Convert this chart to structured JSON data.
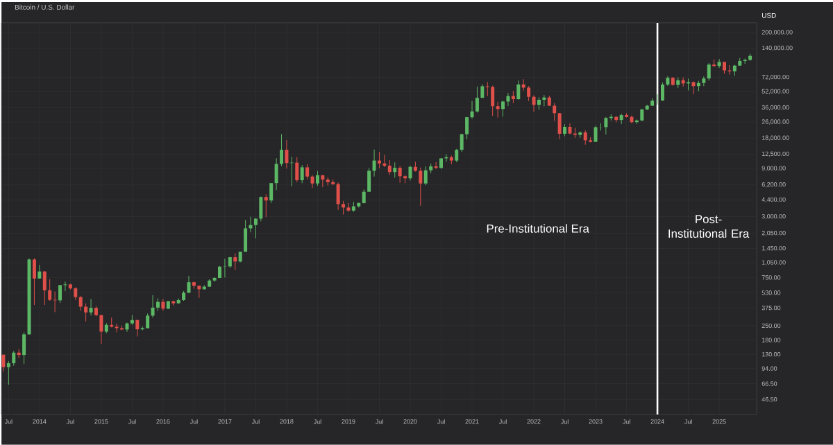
{
  "chart_data": {
    "type": "candlestick",
    "title": "Bitcoin / U.S. Dollar",
    "ylabel": "USD",
    "log": "y",
    "grid": true,
    "xlim": [
      "2013-05-20",
      "2025-08-10"
    ],
    "ylim": [
      33,
      250000
    ],
    "xticks": [
      {
        "value": "2013-07",
        "label": "Jul"
      },
      "2014",
      {
        "value": "2014-07",
        "label": "Jul"
      },
      "2015",
      {
        "value": "2015-07",
        "label": "Jul"
      },
      "2016",
      {
        "value": "2016-07",
        "label": "Jul"
      },
      "2017",
      {
        "value": "2017-07",
        "label": "Jul"
      },
      "2018",
      {
        "value": "2018-07",
        "label": "Jul"
      },
      "2019",
      {
        "value": "2019-07",
        "label": "Jul"
      },
      "2020",
      {
        "value": "2020-07",
        "label": "Jul"
      },
      "2021",
      {
        "value": "2021-07",
        "label": "Jul"
      },
      "2022",
      {
        "value": "2022-07",
        "label": "Jul"
      },
      "2023",
      {
        "value": "2023-07",
        "label": "Jul"
      },
      "2024",
      {
        "value": "2024-07",
        "label": "Jul"
      },
      "2025"
    ],
    "yticks": [
      {
        "value": 46.5,
        "label": "46.50"
      },
      {
        "value": 66.5,
        "label": "66.50"
      },
      {
        "value": 94,
        "label": "94.00"
      },
      {
        "value": 130,
        "label": "130.00"
      },
      {
        "value": 180,
        "label": "180.00"
      },
      {
        "value": 250,
        "label": "250.00"
      },
      {
        "value": 375,
        "label": "375.00"
      },
      {
        "value": 530,
        "label": "530.00"
      },
      {
        "value": 750,
        "label": "750.00"
      },
      {
        "value": 1050,
        "label": "1,050.00"
      },
      {
        "value": 1450,
        "label": "1,450.00"
      },
      {
        "value": 2050,
        "label": "2,050.00"
      },
      {
        "value": 3000,
        "label": "3,000.00"
      },
      {
        "value": 4400,
        "label": "4,400.00"
      },
      {
        "value": 6200,
        "label": "6,200.00"
      },
      {
        "value": 9000,
        "label": "9,000.00"
      },
      {
        "value": 12500,
        "label": "12,500.00"
      },
      {
        "value": 18000,
        "label": "18,000.00"
      },
      {
        "value": 26000,
        "label": "26,000.00"
      },
      {
        "value": 36000,
        "label": "36,000.00"
      },
      {
        "value": 52000,
        "label": "52,000.00"
      },
      {
        "value": 72000,
        "label": "72,000.00"
      },
      {
        "value": 140000,
        "label": "140,000.00"
      },
      {
        "value": 200000,
        "label": "200,000.00"
      }
    ],
    "ref_lines": [
      {
        "axis": "x",
        "value": "2024-01",
        "color": "#ffffff"
      }
    ],
    "annotations": [
      "Pre-Institutional Era",
      "Post-Institutional Era"
    ],
    "x": [
      "2013-06",
      "2013-07",
      "2013-08",
      "2013-09",
      "2013-10",
      "2013-11",
      "2013-12",
      "2014-01",
      "2014-02",
      "2014-03",
      "2014-04",
      "2014-05",
      "2014-06",
      "2014-07",
      "2014-08",
      "2014-09",
      "2014-10",
      "2014-11",
      "2014-12",
      "2015-01",
      "2015-02",
      "2015-03",
      "2015-04",
      "2015-05",
      "2015-06",
      "2015-07",
      "2015-08",
      "2015-09",
      "2015-10",
      "2015-11",
      "2015-12",
      "2016-01",
      "2016-02",
      "2016-03",
      "2016-04",
      "2016-05",
      "2016-06",
      "2016-07",
      "2016-08",
      "2016-09",
      "2016-10",
      "2016-11",
      "2016-12",
      "2017-01",
      "2017-02",
      "2017-03",
      "2017-04",
      "2017-05",
      "2017-06",
      "2017-07",
      "2017-08",
      "2017-09",
      "2017-10",
      "2017-11",
      "2017-12",
      "2018-01",
      "2018-02",
      "2018-03",
      "2018-04",
      "2018-05",
      "2018-06",
      "2018-07",
      "2018-08",
      "2018-09",
      "2018-10",
      "2018-11",
      "2018-12",
      "2019-01",
      "2019-02",
      "2019-03",
      "2019-04",
      "2019-05",
      "2019-06",
      "2019-07",
      "2019-08",
      "2019-09",
      "2019-10",
      "2019-11",
      "2019-12",
      "2020-01",
      "2020-02",
      "2020-03",
      "2020-04",
      "2020-05",
      "2020-06",
      "2020-07",
      "2020-08",
      "2020-09",
      "2020-10",
      "2020-11",
      "2020-12",
      "2021-01",
      "2021-02",
      "2021-03",
      "2021-04",
      "2021-05",
      "2021-06",
      "2021-07",
      "2021-08",
      "2021-09",
      "2021-10",
      "2021-11",
      "2021-12",
      "2022-01",
      "2022-02",
      "2022-03",
      "2022-04",
      "2022-05",
      "2022-06",
      "2022-07",
      "2022-08",
      "2022-09",
      "2022-10",
      "2022-11",
      "2022-12",
      "2023-01",
      "2023-02",
      "2023-03",
      "2023-04",
      "2023-05",
      "2023-06",
      "2023-07",
      "2023-08",
      "2023-09",
      "2023-10",
      "2023-11",
      "2023-12",
      "2024-01",
      "2024-02",
      "2024-03",
      "2024-04",
      "2024-05",
      "2024-06",
      "2024-07",
      "2024-08",
      "2024-09",
      "2024-10",
      "2024-11",
      "2024-12",
      "2025-01",
      "2025-02",
      "2025-03",
      "2025-04",
      "2025-05",
      "2025-06",
      "2025-07"
    ],
    "ohlc": [
      [
        129,
        129,
        88,
        97
      ],
      [
        97,
        111,
        65,
        106
      ],
      [
        106,
        140,
        100,
        135
      ],
      [
        135,
        146,
        120,
        128
      ],
      [
        128,
        215,
        104,
        205
      ],
      [
        205,
        1160,
        203,
        1130
      ],
      [
        1130,
        1163,
        400,
        732
      ],
      [
        732,
        1000,
        730,
        860
      ],
      [
        860,
        870,
        400,
        560
      ],
      [
        560,
        720,
        440,
        450
      ],
      [
        450,
        545,
        340,
        445
      ],
      [
        445,
        630,
        420,
        630
      ],
      [
        630,
        680,
        550,
        640
      ],
      [
        640,
        650,
        570,
        585
      ],
      [
        585,
        600,
        450,
        480
      ],
      [
        480,
        490,
        350,
        385
      ],
      [
        385,
        415,
        275,
        338
      ],
      [
        338,
        460,
        316,
        375
      ],
      [
        375,
        390,
        310,
        318
      ],
      [
        318,
        320,
        165,
        218
      ],
      [
        218,
        265,
        210,
        254
      ],
      [
        254,
        300,
        240,
        244
      ],
      [
        244,
        262,
        215,
        236
      ],
      [
        236,
        250,
        225,
        229
      ],
      [
        229,
        268,
        217,
        263
      ],
      [
        263,
        318,
        255,
        284
      ],
      [
        284,
        287,
        195,
        230
      ],
      [
        230,
        245,
        225,
        236
      ],
      [
        236,
        330,
        235,
        314
      ],
      [
        314,
        500,
        300,
        377
      ],
      [
        377,
        467,
        350,
        430
      ],
      [
        430,
        460,
        350,
        368
      ],
      [
        368,
        440,
        365,
        437
      ],
      [
        437,
        440,
        395,
        416
      ],
      [
        416,
        465,
        412,
        448
      ],
      [
        448,
        550,
        440,
        530
      ],
      [
        530,
        780,
        525,
        673
      ],
      [
        673,
        680,
        580,
        621
      ],
      [
        621,
        625,
        470,
        573
      ],
      [
        573,
        630,
        570,
        608
      ],
      [
        608,
        720,
        605,
        700
      ],
      [
        700,
        755,
        680,
        742
      ],
      [
        742,
        975,
        740,
        960
      ],
      [
        960,
        1150,
        750,
        965
      ],
      [
        965,
        1200,
        930,
        1190
      ],
      [
        1190,
        1300,
        890,
        1080
      ],
      [
        1080,
        1350,
        1060,
        1350
      ],
      [
        1350,
        2780,
        1350,
        2300
      ],
      [
        2300,
        3000,
        2100,
        2480
      ],
      [
        2480,
        2900,
        1830,
        2870
      ],
      [
        2870,
        4750,
        2700,
        4700
      ],
      [
        4700,
        5000,
        2970,
        4340
      ],
      [
        4340,
        6450,
        4100,
        6450
      ],
      [
        6450,
        11400,
        5500,
        10000
      ],
      [
        10000,
        19700,
        9500,
        13800
      ],
      [
        13800,
        17200,
        9000,
        10200
      ],
      [
        10200,
        11800,
        6000,
        10300
      ],
      [
        10300,
        11700,
        6600,
        6900
      ],
      [
        6900,
        9750,
        6450,
        9250
      ],
      [
        9250,
        9950,
        7000,
        7500
      ],
      [
        7500,
        7750,
        5780,
        6400
      ],
      [
        6400,
        8500,
        6070,
        7730
      ],
      [
        7730,
        7750,
        5880,
        7000
      ],
      [
        7000,
        7400,
        6100,
        6600
      ],
      [
        6600,
        7000,
        6200,
        6300
      ],
      [
        6300,
        6550,
        3500,
        4000
      ],
      [
        4000,
        4300,
        3150,
        3700
      ],
      [
        3700,
        4100,
        3350,
        3450
      ],
      [
        3450,
        4200,
        3350,
        3800
      ],
      [
        3800,
        4150,
        3700,
        4100
      ],
      [
        4100,
        5600,
        4050,
        5300
      ],
      [
        5300,
        9100,
        5300,
        8550
      ],
      [
        8550,
        13880,
        7500,
        10800
      ],
      [
        10800,
        13200,
        9050,
        10100
      ],
      [
        10100,
        12300,
        9300,
        9600
      ],
      [
        9600,
        10900,
        7800,
        8300
      ],
      [
        8300,
        10350,
        7300,
        9150
      ],
      [
        9150,
        9500,
        6500,
        7550
      ],
      [
        7550,
        7750,
        6430,
        7200
      ],
      [
        7200,
        9600,
        6850,
        9350
      ],
      [
        9350,
        10500,
        8400,
        8550
      ],
      [
        8550,
        9200,
        3850,
        6400
      ],
      [
        6400,
        9450,
        6150,
        8650
      ],
      [
        8650,
        10070,
        8100,
        9450
      ],
      [
        9450,
        10400,
        8900,
        9150
      ],
      [
        9150,
        11450,
        8900,
        11350
      ],
      [
        11350,
        12470,
        10500,
        11650
      ],
      [
        11650,
        12100,
        9900,
        10800
      ],
      [
        10800,
        14100,
        10400,
        13800
      ],
      [
        13800,
        19900,
        13200,
        19700
      ],
      [
        19700,
        29300,
        17600,
        29000
      ],
      [
        29000,
        41900,
        28100,
        33100
      ],
      [
        33100,
        58300,
        32300,
        45200
      ],
      [
        45200,
        61700,
        45000,
        58800
      ],
      [
        58800,
        64800,
        47000,
        57800
      ],
      [
        57800,
        59500,
        30000,
        37300
      ],
      [
        37300,
        41300,
        28800,
        35000
      ],
      [
        35000,
        42300,
        29300,
        41500
      ],
      [
        41500,
        50500,
        37400,
        47100
      ],
      [
        47100,
        52900,
        40000,
        43800
      ],
      [
        43800,
        67000,
        43300,
        61300
      ],
      [
        61300,
        69000,
        53300,
        57000
      ],
      [
        57000,
        59000,
        42000,
        46200
      ],
      [
        46200,
        47900,
        32900,
        38500
      ],
      [
        38500,
        45800,
        34300,
        43200
      ],
      [
        43200,
        48200,
        37200,
        45500
      ],
      [
        45500,
        47400,
        37600,
        37700
      ],
      [
        37700,
        40000,
        26700,
        31800
      ],
      [
        31800,
        31900,
        17600,
        19900
      ],
      [
        19900,
        24700,
        18800,
        23300
      ],
      [
        23300,
        25200,
        19600,
        20000
      ],
      [
        20000,
        22800,
        18150,
        19400
      ],
      [
        19400,
        21000,
        18200,
        20500
      ],
      [
        20500,
        21500,
        15500,
        17150
      ],
      [
        17150,
        18400,
        16300,
        16550
      ],
      [
        16550,
        23950,
        16500,
        23100
      ],
      [
        23100,
        25250,
        21400,
        23150
      ],
      [
        23150,
        29200,
        19550,
        28500
      ],
      [
        28500,
        31000,
        26900,
        29250
      ],
      [
        29250,
        29850,
        25800,
        27200
      ],
      [
        27200,
        31400,
        24800,
        30450
      ],
      [
        30450,
        31800,
        28850,
        29200
      ],
      [
        29200,
        30200,
        25150,
        25950
      ],
      [
        25950,
        27500,
        24900,
        26950
      ],
      [
        26950,
        35200,
        26550,
        34650
      ],
      [
        34650,
        38450,
        34100,
        37700
      ],
      [
        37700,
        44700,
        37600,
        42300
      ],
      [
        42300,
        48950,
        38550,
        42550
      ],
      [
        42550,
        64000,
        41900,
        61150
      ],
      [
        61150,
        73800,
        59300,
        71300
      ],
      [
        71300,
        72700,
        59600,
        60650
      ],
      [
        60650,
        71950,
        56550,
        67500
      ],
      [
        67500,
        72000,
        58400,
        62700
      ],
      [
        62700,
        70000,
        53500,
        64600
      ],
      [
        64600,
        65600,
        49050,
        58950
      ],
      [
        58950,
        66500,
        52550,
        63350
      ],
      [
        63350,
        73600,
        58900,
        70200
      ],
      [
        70200,
        99800,
        66850,
        96400
      ],
      [
        96400,
        108300,
        90500,
        93400
      ],
      [
        93400,
        109400,
        89300,
        102400
      ],
      [
        102400,
        102500,
        78250,
        84350
      ],
      [
        84350,
        95000,
        76600,
        82550
      ],
      [
        82550,
        95750,
        74400,
        94200
      ],
      [
        94200,
        111900,
        93400,
        104600
      ],
      [
        104600,
        110500,
        98250,
        107150
      ],
      [
        107150,
        123200,
        105300,
        117500
      ]
    ]
  }
}
